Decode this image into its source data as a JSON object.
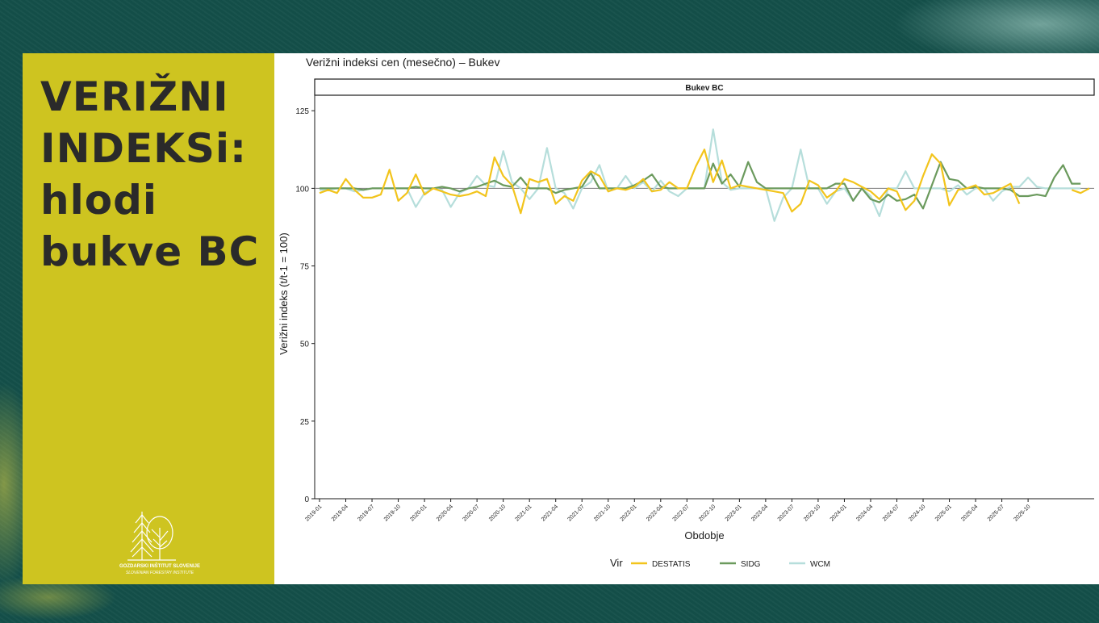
{
  "side": {
    "title_lines": [
      "VERIŽNI",
      "INDEKSi:",
      "hlodi",
      "bukve BC"
    ],
    "logo_name": "GOZDARSKI INŠTITUT SLOVENIJE",
    "logo_sub": "SLOVENIAN FORESTRY INSTITUTE"
  },
  "colors": {
    "DESTATIS": "#f2c41c",
    "SIDG": "#6b9a5d",
    "WCM": "#b6dedb"
  },
  "chart_data": {
    "type": "line",
    "title": "Verižni indeksi cen (mesečno) – Bukev",
    "facet": "Bukev BC",
    "xlabel": "Obdobje",
    "ylabel": "Verižni indeks (t/t-1 = 100)",
    "ylim": [
      0,
      130
    ],
    "yticks": [
      0,
      25,
      50,
      75,
      100,
      125
    ],
    "reference_line": 100,
    "grid": false,
    "legend": {
      "title": "Vir",
      "position": "bottom",
      "entries": [
        "DESTATIS",
        "SIDG",
        "WCM"
      ]
    },
    "x_tick_labels": [
      "2019-01",
      "2019-04",
      "2019-07",
      "2019-10",
      "2020-01",
      "2020-04",
      "2020-07",
      "2020-10",
      "2021-01",
      "2021-04",
      "2021-07",
      "2021-10",
      "2022-01",
      "2022-04",
      "2022-07",
      "2022-10",
      "2023-01",
      "2023-04",
      "2023-07",
      "2023-10",
      "2024-01",
      "2024-04",
      "2024-07",
      "2024-10",
      "2025-01",
      "2025-04",
      "2025-07",
      "2025-10"
    ],
    "x_start": "2019-01",
    "series": [
      {
        "name": "DESTATIS",
        "values": [
          98.5,
          99.5,
          98.5,
          103.0,
          99.5,
          97.0,
          97.0,
          98.0,
          106.0,
          96.0,
          98.5,
          104.5,
          98.0,
          100.0,
          99.0,
          98.0,
          97.5,
          98.0,
          99.0,
          97.5,
          110.0,
          104.0,
          101.0,
          92.0,
          103.0,
          102.0,
          103.0,
          95.0,
          97.5,
          96.0,
          102.5,
          105.5,
          104.0,
          99.0,
          100.0,
          99.5,
          100.5,
          103.0,
          99.0,
          99.5,
          102.0,
          100.0,
          100.0,
          107.0,
          112.5,
          102.0,
          109.0,
          100.0,
          101.0,
          100.5,
          100.0,
          99.5,
          99.0,
          98.5,
          92.5,
          95.0,
          102.5,
          101.0,
          97.0,
          99.0,
          103.0,
          102.0,
          100.5,
          99.0,
          96.5,
          100.0,
          99.0,
          93.0,
          96.0,
          104.0,
          111.0,
          108.0,
          94.5,
          99.5,
          100.0,
          101.0,
          98.0,
          98.5,
          100.0,
          101.5,
          95.0,
          null,
          null,
          null,
          null,
          null,
          99.5,
          98.5,
          100.0
        ]
      },
      {
        "name": "SIDG",
        "values": [
          100.0,
          100.0,
          100.0,
          100.0,
          100.0,
          99.5,
          100.0,
          100.0,
          100.0,
          100.0,
          100.0,
          100.5,
          100.0,
          100.0,
          100.5,
          100.0,
          99.0,
          100.0,
          100.5,
          101.5,
          102.5,
          101.0,
          100.5,
          103.5,
          100.0,
          100.0,
          100.0,
          98.5,
          99.5,
          100.0,
          100.5,
          105.0,
          100.0,
          100.0,
          100.0,
          100.0,
          101.0,
          102.5,
          104.5,
          100.5,
          100.0,
          100.0,
          100.0,
          100.0,
          100.0,
          108.0,
          101.5,
          104.5,
          100.5,
          108.5,
          102.0,
          100.0,
          100.0,
          100.0,
          100.0,
          100.0,
          100.0,
          100.0,
          100.0,
          101.5,
          101.5,
          96.0,
          100.0,
          96.5,
          95.5,
          98.0,
          96.0,
          96.5,
          98.0,
          93.5,
          101.0,
          108.5,
          103.0,
          102.5,
          100.0,
          100.5,
          100.0,
          100.0,
          100.0,
          99.5,
          97.5,
          97.5,
          98.0,
          97.5,
          103.5,
          107.5,
          101.5,
          101.5
        ]
      },
      {
        "name": "WCM",
        "values": [
          99.5,
          99.5,
          100.0,
          100.0,
          99.0,
          99.5,
          100.0,
          100.0,
          100.0,
          100.0,
          100.0,
          94.0,
          98.5,
          100.0,
          99.5,
          94.0,
          98.5,
          100.0,
          104.0,
          101.0,
          100.5,
          112.0,
          102.0,
          100.0,
          96.5,
          100.0,
          113.0,
          100.0,
          98.5,
          93.5,
          100.0,
          102.0,
          107.5,
          99.0,
          100.0,
          104.0,
          100.0,
          102.0,
          99.0,
          102.5,
          99.0,
          97.5,
          100.0,
          100.0,
          100.0,
          119.0,
          102.0,
          99.5,
          100.0,
          100.0,
          100.0,
          100.0,
          89.5,
          97.0,
          100.0,
          112.5,
          100.0,
          100.0,
          95.0,
          99.0,
          100.0,
          96.0,
          100.0,
          97.5,
          91.0,
          100.0,
          100.0,
          105.5,
          100.0,
          100.0,
          100.0,
          100.0,
          99.0,
          101.0,
          98.0,
          100.0,
          100.0,
          96.0,
          99.0,
          100.5,
          100.5,
          103.5,
          100.5,
          100.0,
          100.0,
          100.0,
          100.0,
          100.0
        ]
      }
    ]
  }
}
